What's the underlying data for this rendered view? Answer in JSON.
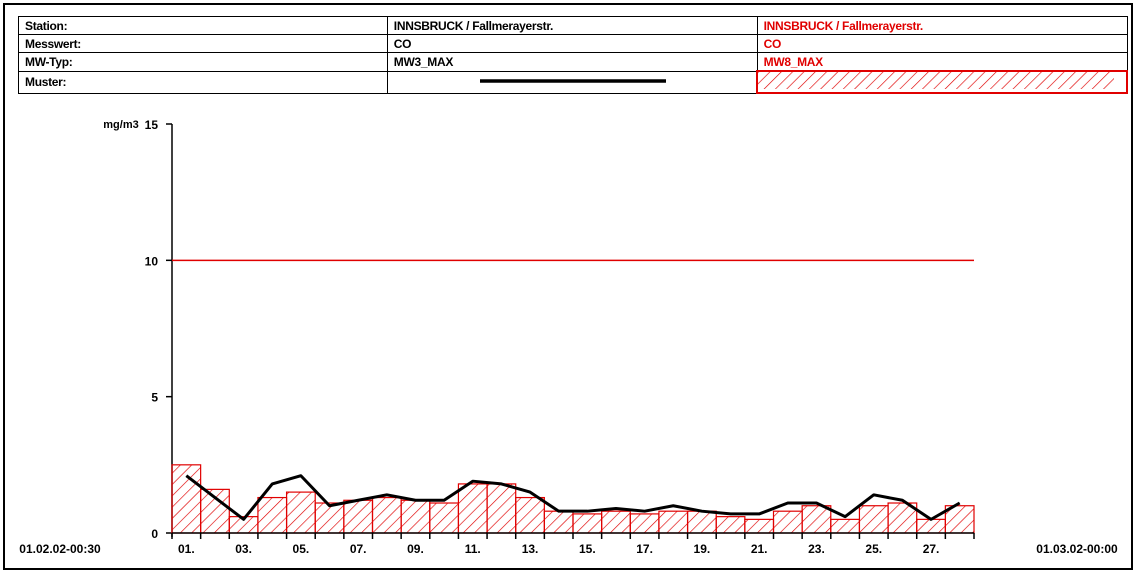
{
  "legend_table": {
    "rows": [
      {
        "label": "Station:",
        "series1": "INNSBRUCK / Fallmerayerstr.",
        "series2": "INNSBRUCK / Fallmerayerstr."
      },
      {
        "label": "Messwert:",
        "series1": "CO",
        "series2": "CO"
      },
      {
        "label": "MW-Typ:",
        "series1": "MW3_MAX",
        "series2": "MW8_MAX"
      },
      {
        "label": "Muster:",
        "series1": "",
        "series2": ""
      }
    ]
  },
  "colors": {
    "series1": "#000000",
    "series2": "#e00000",
    "limit": "#e00000"
  },
  "chart_data": {
    "type": "bar",
    "ylabel": "mg/m3",
    "ylim": [
      0,
      15
    ],
    "yticks": [
      0,
      5,
      10,
      15
    ],
    "x_start_label": "01.02.02-00:30",
    "x_end_label": "01.03.02-00:00",
    "categories": [
      "01.",
      "02.",
      "03.",
      "04.",
      "05.",
      "06.",
      "07.",
      "08.",
      "09.",
      "10.",
      "11.",
      "12.",
      "13.",
      "14.",
      "15.",
      "16.",
      "17.",
      "18.",
      "19.",
      "20.",
      "21.",
      "22.",
      "23.",
      "24.",
      "25.",
      "26.",
      "27.",
      "28."
    ],
    "xtick_labels": [
      "01.",
      "03.",
      "05.",
      "07.",
      "09.",
      "11.",
      "13.",
      "15.",
      "17.",
      "19.",
      "21.",
      "23.",
      "25.",
      "27."
    ],
    "limit_line": 10,
    "series": [
      {
        "name": "MW8_MAX",
        "type": "bar",
        "pattern": "hatch",
        "values": [
          2.5,
          1.6,
          0.6,
          1.3,
          1.5,
          1.1,
          1.2,
          1.3,
          1.2,
          1.1,
          1.8,
          1.8,
          1.3,
          0.8,
          0.7,
          0.8,
          0.7,
          0.8,
          0.8,
          0.6,
          0.5,
          0.8,
          1.0,
          0.5,
          1.0,
          1.1,
          0.5,
          1.0
        ]
      },
      {
        "name": "MW3_MAX",
        "type": "line",
        "values": [
          2.1,
          1.3,
          0.5,
          1.8,
          2.1,
          1.0,
          1.2,
          1.4,
          1.2,
          1.2,
          1.9,
          1.8,
          1.5,
          0.8,
          0.8,
          0.9,
          0.8,
          1.0,
          0.8,
          0.7,
          0.7,
          1.1,
          1.1,
          0.6,
          1.4,
          1.2,
          0.5,
          1.1
        ]
      }
    ]
  }
}
